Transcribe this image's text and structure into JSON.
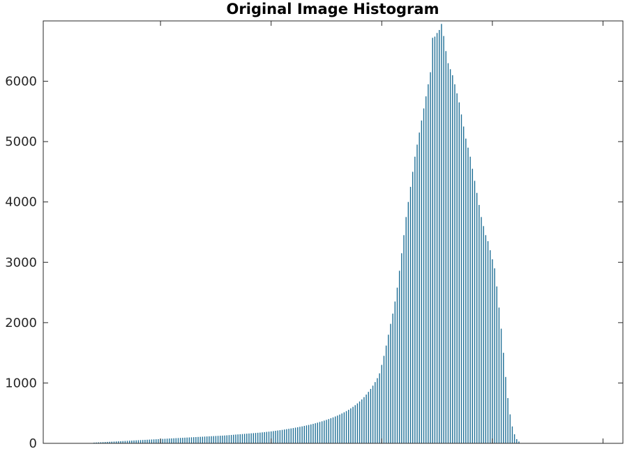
{
  "chart_data": {
    "type": "bar",
    "title": "Original Image Histogram",
    "xlabel": "",
    "ylabel": "",
    "xlim": [
      -3,
      259
    ],
    "ylim": [
      0,
      7000
    ],
    "yticks": [
      0,
      1000,
      2000,
      3000,
      4000,
      5000,
      6000
    ],
    "ytick_labels": [
      "0",
      "1000",
      "2000",
      "3000",
      "4000",
      "5000",
      "6000"
    ],
    "xticks": [
      50,
      100,
      150,
      200,
      250
    ],
    "xtick_labels": [],
    "grid": false,
    "legend": "none",
    "bar_color": "#1f6f96",
    "series": [
      {
        "x_start": 20,
        "values": [
          12,
          14,
          16,
          18,
          20,
          22,
          24,
          26,
          28,
          30,
          32,
          34,
          36,
          38,
          40,
          42,
          44,
          46,
          48,
          50,
          52,
          54,
          56,
          58,
          60,
          62,
          64,
          66,
          68,
          70,
          72,
          74,
          76,
          78,
          80,
          82,
          84,
          86,
          88,
          90,
          92,
          94,
          96,
          98,
          100,
          102,
          104,
          106,
          108,
          110,
          112,
          114,
          116,
          118,
          120,
          122,
          124,
          126,
          128,
          130,
          133,
          136,
          139,
          142,
          145,
          148,
          151,
          154,
          157,
          160,
          163,
          166,
          169,
          172,
          175,
          178,
          182,
          186,
          190,
          194,
          198,
          203,
          208,
          213,
          218,
          223,
          229,
          235,
          241,
          247,
          253,
          260,
          267,
          274,
          281,
          289,
          297,
          305,
          314,
          323,
          333,
          343,
          354,
          365,
          377,
          389,
          402,
          416,
          430,
          445,
          460,
          477,
          495,
          514,
          534,
          556,
          580,
          605,
          632,
          662,
          694,
          728,
          766,
          808,
          853,
          902,
          956,
          1015,
          1080,
          1160,
          1300,
          1450,
          1620,
          1800,
          1980,
          2150,
          2350,
          2580,
          2860,
          3150,
          3450,
          3750,
          4000,
          4250,
          4500,
          4750,
          4950,
          5150,
          5350,
          5550,
          5750,
          5950,
          6150,
          6720,
          6740,
          6800,
          6850,
          6950,
          6750,
          6500,
          6300,
          6200,
          6100,
          5950,
          5800,
          5650,
          5450,
          5250,
          5050,
          4900,
          4750,
          4550,
          4350,
          4150,
          3950,
          3750,
          3600,
          3450,
          3350,
          3200,
          3050,
          2900,
          2600,
          2250,
          1900,
          1500,
          1100,
          750,
          480,
          280,
          150,
          70,
          30
        ]
      }
    ]
  }
}
